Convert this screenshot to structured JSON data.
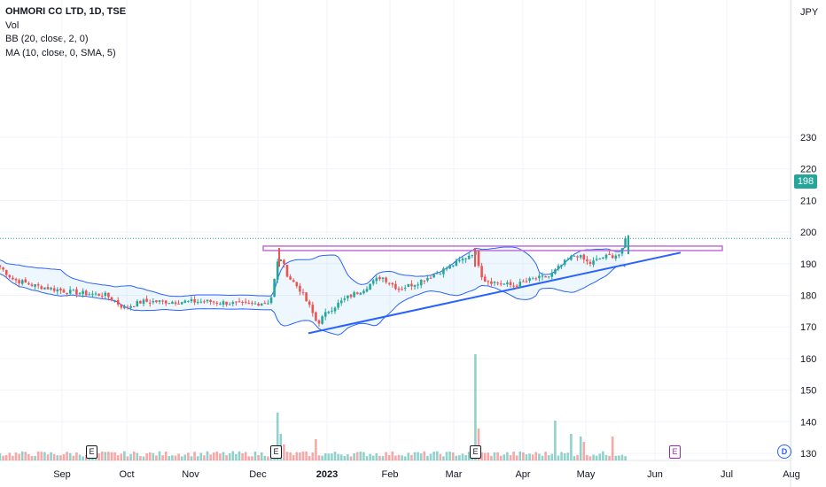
{
  "legend": {
    "symbol": "OHMORI CO LTD, 1D, TSE",
    "vol": "Vol",
    "bb": "BB (20, close, 2, 0)",
    "ma": "MA (10, close, 0, SMA, 5)"
  },
  "currency": "JPY",
  "last_price_label": "198",
  "markers": {
    "earnings": "E",
    "dividend": "E",
    "session": "D"
  },
  "colors": {
    "up": "#26a69a",
    "down": "#ef5350",
    "bands": "#2962ff",
    "trendline": "#2962ff",
    "resistance": "#c26fd8"
  },
  "chart_data": {
    "type": "candlestick",
    "y_ticks": [
      "230",
      "220",
      "210",
      "200",
      "190",
      "180",
      "170",
      "160",
      "150",
      "140",
      "130"
    ],
    "ylim": [
      128,
      240
    ],
    "x_ticks": [
      "Sep",
      "Oct",
      "Nov",
      "Dec",
      "2023",
      "Feb",
      "Mar",
      "Apr",
      "May",
      "Jun",
      "Jul",
      "Aug"
    ],
    "last_price": 198,
    "resistance_level": 195,
    "trendline": {
      "from": 168,
      "to": 193.5
    },
    "anchors": [
      {
        "x": 0,
        "close": 189
      },
      {
        "x": 15,
        "close": 185
      },
      {
        "x": 40,
        "close": 183
      },
      {
        "x": 80,
        "close": 181
      },
      {
        "x": 120,
        "close": 180
      },
      {
        "x": 140,
        "close": 176
      },
      {
        "x": 160,
        "close": 178
      },
      {
        "x": 200,
        "close": 178
      },
      {
        "x": 240,
        "close": 178
      },
      {
        "x": 280,
        "close": 177
      },
      {
        "x": 305,
        "close": 178
      },
      {
        "x": 315,
        "close": 193
      },
      {
        "x": 325,
        "close": 186
      },
      {
        "x": 338,
        "close": 182
      },
      {
        "x": 350,
        "close": 176
      },
      {
        "x": 358,
        "close": 171
      },
      {
        "x": 370,
        "close": 175
      },
      {
        "x": 390,
        "close": 179
      },
      {
        "x": 410,
        "close": 182
      },
      {
        "x": 430,
        "close": 186
      },
      {
        "x": 450,
        "close": 182
      },
      {
        "x": 470,
        "close": 184
      },
      {
        "x": 500,
        "close": 188
      },
      {
        "x": 520,
        "close": 191
      },
      {
        "x": 536,
        "close": 194
      },
      {
        "x": 545,
        "close": 185
      },
      {
        "x": 560,
        "close": 184
      },
      {
        "x": 580,
        "close": 183
      },
      {
        "x": 600,
        "close": 185
      },
      {
        "x": 620,
        "close": 186
      },
      {
        "x": 635,
        "close": 190
      },
      {
        "x": 650,
        "close": 193
      },
      {
        "x": 665,
        "close": 190
      },
      {
        "x": 680,
        "close": 192
      },
      {
        "x": 700,
        "close": 193
      },
      {
        "x": 709,
        "close": 198
      }
    ],
    "volume_spikes": [
      {
        "x": 315,
        "v": 18
      },
      {
        "x": 318,
        "v": 10
      },
      {
        "x": 320,
        "v": 6
      },
      {
        "x": 357,
        "v": 8
      },
      {
        "x": 536,
        "v": 40
      },
      {
        "x": 539,
        "v": 12
      },
      {
        "x": 628,
        "v": 15
      },
      {
        "x": 646,
        "v": 10
      },
      {
        "x": 656,
        "v": 9
      },
      {
        "x": 660,
        "v": 7
      },
      {
        "x": 690,
        "v": 9
      },
      {
        "x": 708,
        "v": 11
      }
    ]
  }
}
